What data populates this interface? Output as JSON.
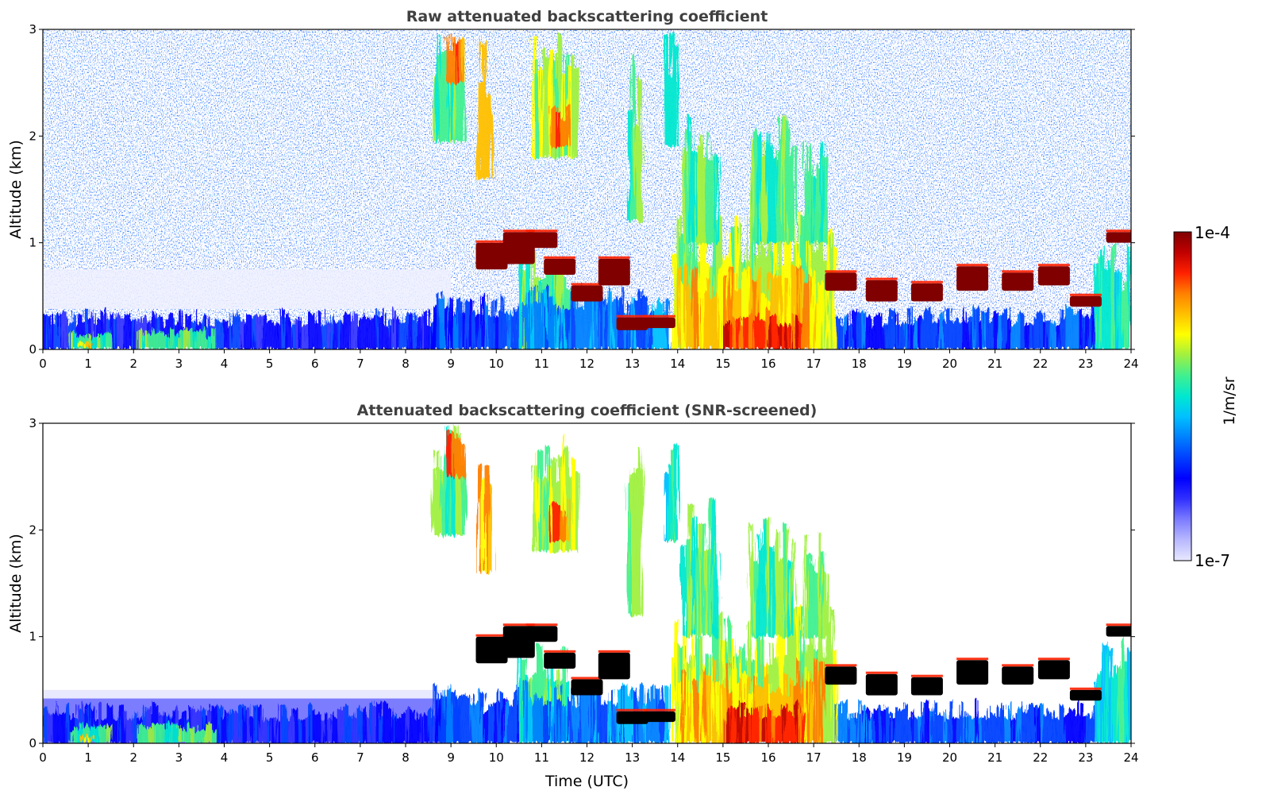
{
  "colors": {
    "scale": [
      "#e8e8ff",
      "#b8b8ff",
      "#7c7cff",
      "#3030ff",
      "#0000ff",
      "#0040ff",
      "#0080ff",
      "#00c0ff",
      "#00e8d0",
      "#40f090",
      "#a0f040",
      "#ffff00",
      "#ffc000",
      "#ff8000",
      "#ff2000",
      "#c00000",
      "#800000"
    ],
    "below_scale": "#ffffff",
    "saturated_screened": "#000000",
    "title": "#404040"
  },
  "chart_data": [
    {
      "type": "heatmap",
      "title": "Raw attenuated backscattering coefficient",
      "xlabel": "",
      "ylabel": "Altitude (km)",
      "xlim": [
        0,
        24
      ],
      "ylim": [
        0,
        3
      ],
      "xticks": [
        "0",
        "1",
        "2",
        "3",
        "4",
        "5",
        "6",
        "7",
        "8",
        "9",
        "10",
        "11",
        "12",
        "13",
        "14",
        "15",
        "16",
        "17",
        "18",
        "19",
        "20",
        "21",
        "22",
        "23",
        "24"
      ],
      "yticks": [
        "0",
        "1",
        "2",
        "3"
      ],
      "screened": false
    },
    {
      "type": "heatmap",
      "title": "Attenuated backscattering coefficient (SNR-screened)",
      "xlabel": "Time (UTC)",
      "ylabel": "Altitude (km)",
      "xlim": [
        0,
        24
      ],
      "ylim": [
        0,
        3
      ],
      "xticks": [
        "0",
        "1",
        "2",
        "3",
        "4",
        "5",
        "6",
        "7",
        "8",
        "9",
        "10",
        "11",
        "12",
        "13",
        "14",
        "15",
        "16",
        "17",
        "18",
        "19",
        "20",
        "21",
        "22",
        "23",
        "24"
      ],
      "yticks": [
        "0",
        "1",
        "2",
        "3"
      ],
      "screened": true
    }
  ],
  "colorbar": {
    "label": "1/m/sr",
    "max_label": "1e-4",
    "min_label": "1e-7",
    "range": [
      1e-07,
      0.0001
    ],
    "scale": "log"
  }
}
